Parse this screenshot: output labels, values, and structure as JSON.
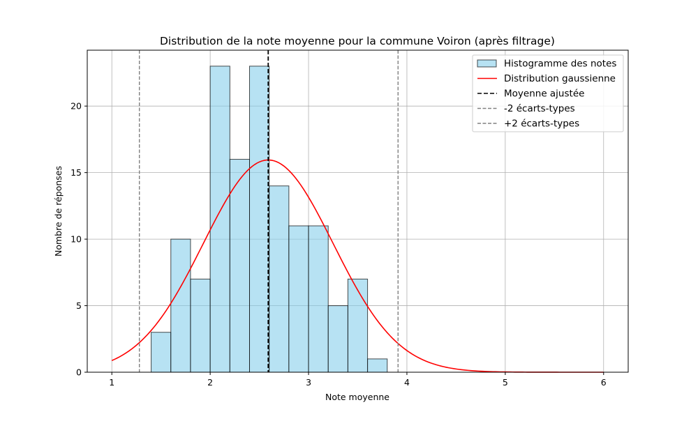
{
  "chart_data": {
    "type": "bar",
    "title": "Distribution de la note moyenne pour la commune Voiron (après filtrage)",
    "xlabel": "Note moyenne",
    "ylabel": "Nombre de réponses",
    "xlim": [
      0.75,
      6.25
    ],
    "ylim": [
      0,
      24.2
    ],
    "grid": true,
    "legend_position": "top-right",
    "x_ticks": [
      1,
      2,
      3,
      4,
      5,
      6
    ],
    "x_tick_labels": [
      "1",
      "2",
      "3",
      "4",
      "5",
      "6"
    ],
    "y_ticks": [
      0,
      5,
      10,
      15,
      20
    ],
    "y_tick_labels": [
      "0",
      "5",
      "10",
      "15",
      "20"
    ],
    "histogram": {
      "name": "Histogramme des notes",
      "bin_edges": [
        1.4,
        1.6,
        1.8,
        2.0,
        2.2,
        2.4,
        2.6,
        2.8,
        3.0,
        3.2,
        3.4,
        3.6,
        3.8
      ],
      "counts": [
        3,
        10,
        7,
        23,
        16,
        23,
        14,
        11,
        11,
        5,
        7,
        1
      ],
      "color": "#87ceeb"
    },
    "gaussian": {
      "name": "Distribution gaussienne",
      "mean": 2.59,
      "std": 0.66,
      "peak": 15.95,
      "x_range": [
        1,
        6
      ],
      "color": "#ff0000"
    },
    "vlines": [
      {
        "name": "Moyenne ajustée",
        "x": 2.59,
        "color": "#000000"
      },
      {
        "name": "-2 écarts-types",
        "x": 1.28,
        "color": "#808080"
      },
      {
        "name": "+2 écarts-types",
        "x": 3.91,
        "color": "#808080"
      }
    ]
  }
}
